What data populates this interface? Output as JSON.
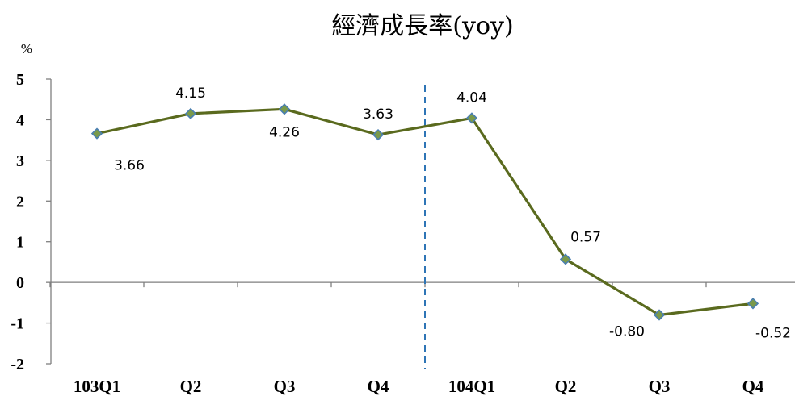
{
  "chart_data": {
    "type": "line",
    "title": "經濟成長率(yoy)",
    "ylabel": "%",
    "xlabel": "",
    "categories": [
      "103Q1",
      "Q2",
      "Q3",
      "Q4",
      "104Q1",
      "Q2",
      "Q3",
      "Q4"
    ],
    "ylim": [
      -2,
      5
    ],
    "yticks": [
      5,
      4,
      3,
      2,
      1,
      0,
      -1,
      -2
    ],
    "series": [
      {
        "values": [
          3.66,
          4.15,
          4.26,
          3.63,
          4.04,
          0.57,
          -0.8,
          -0.52
        ],
        "data_labels": [
          "3.66",
          "4.15",
          "4.26",
          "3.63",
          "4.04",
          "0.57",
          "-0.80",
          "-0.52"
        ],
        "line_color": "#5a6a1e",
        "marker_color": "#7a9a4a",
        "marker_edge_color": "#4a7fb0",
        "marker": "diamond"
      }
    ],
    "separator": {
      "between": [
        "Q4",
        "104Q1"
      ],
      "style": "dashed",
      "color": "#2e75b6"
    },
    "grid": false,
    "legend": "none"
  }
}
